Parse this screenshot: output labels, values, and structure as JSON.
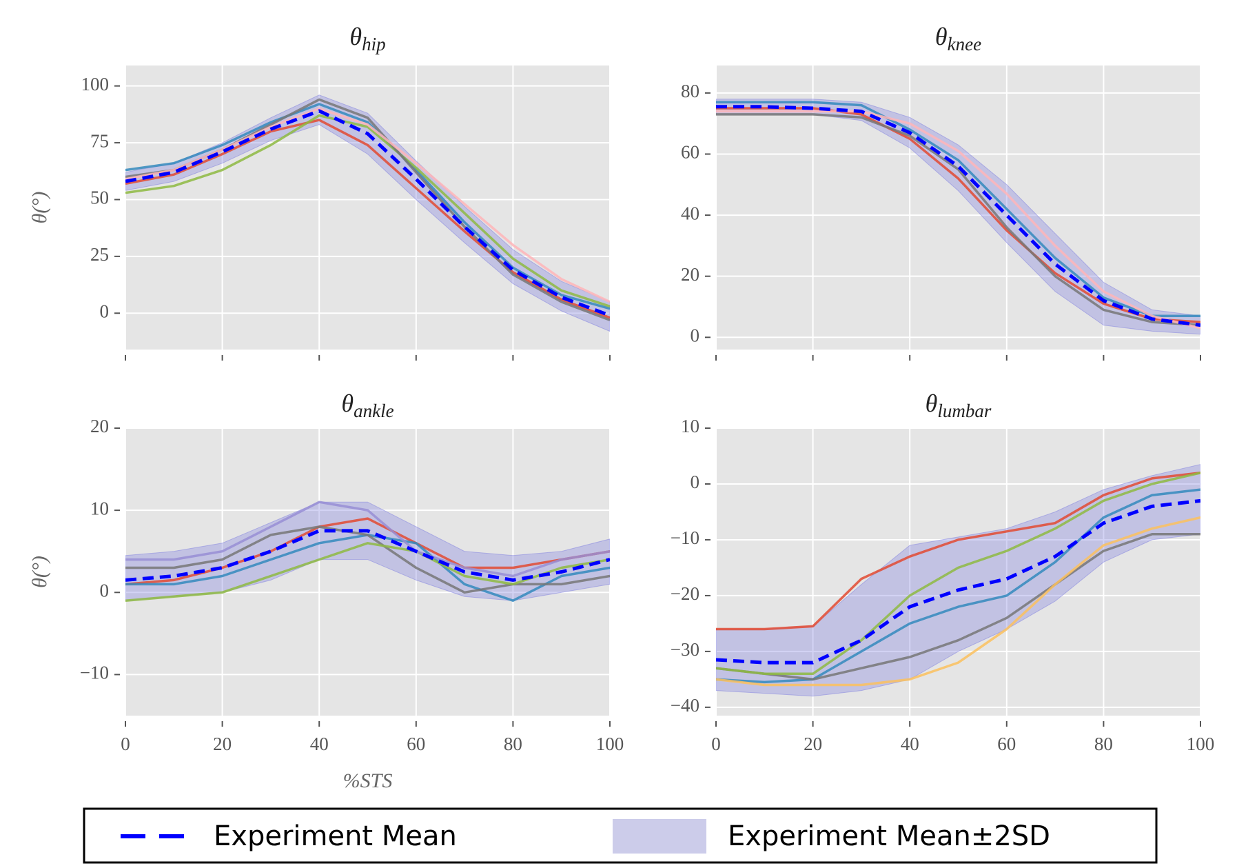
{
  "legend": {
    "items": [
      {
        "name": "Experiment Mean",
        "color": "#0000ff",
        "style": "dashed"
      },
      {
        "name": "Experiment Mean±2SD",
        "color": "#ccccea",
        "style": "patch"
      }
    ]
  },
  "chart_data": [
    {
      "type": "line",
      "title": {
        "symbol": "θ",
        "subscript": "hip"
      },
      "ylabel": "θ(°)",
      "x": [
        0,
        10,
        20,
        30,
        40,
        50,
        60,
        70,
        80,
        90,
        100
      ],
      "xlim": [
        0,
        100
      ],
      "ylim": [
        -16,
        109
      ],
      "xticks": [
        0,
        20,
        40,
        60,
        80,
        100
      ],
      "xtick_labels": false,
      "yticks": [
        0,
        25,
        50,
        75,
        100
      ],
      "grid": true,
      "trials": [
        {
          "color": "#e24a33",
          "values": [
            57,
            61,
            70,
            80,
            85,
            74,
            55,
            36,
            18,
            6,
            -2
          ]
        },
        {
          "color": "#348abd",
          "values": [
            63,
            66,
            74,
            84,
            92,
            84,
            63,
            40,
            20,
            8,
            2
          ]
        },
        {
          "color": "#8eba42",
          "values": [
            53,
            56,
            63,
            74,
            87,
            82,
            64,
            44,
            24,
            10,
            3
          ]
        },
        {
          "color": "#777777",
          "values": [
            60,
            63,
            72,
            83,
            94,
            86,
            62,
            38,
            17,
            5,
            -3
          ]
        },
        {
          "color": "#ffb5b8",
          "values": [
            59,
            63,
            72,
            82,
            90,
            83,
            66,
            48,
            30,
            15,
            5
          ]
        }
      ],
      "band": {
        "color": "#8080e0",
        "upper": [
          62,
          66,
          75,
          86,
          96,
          88,
          67,
          47,
          28,
          14,
          5
        ],
        "lower": [
          54,
          58,
          66,
          76,
          83,
          70,
          50,
          31,
          13,
          1,
          -8
        ]
      },
      "mean": {
        "color": "#0000ff",
        "values": [
          58,
          62,
          71,
          81,
          89,
          79,
          59,
          38,
          19,
          7,
          -1
        ]
      }
    },
    {
      "type": "line",
      "title": {
        "symbol": "θ",
        "subscript": "knee"
      },
      "x": [
        0,
        10,
        20,
        30,
        40,
        50,
        60,
        70,
        80,
        90,
        100
      ],
      "xlim": [
        0,
        100
      ],
      "ylim": [
        -4,
        89
      ],
      "xticks": [
        0,
        20,
        40,
        60,
        80,
        100
      ],
      "xtick_labels": false,
      "yticks": [
        0,
        20,
        40,
        60,
        80
      ],
      "grid": true,
      "trials": [
        {
          "color": "#e24a33",
          "values": [
            75,
            75,
            75,
            73,
            65,
            52,
            35,
            21,
            11,
            6,
            5
          ]
        },
        {
          "color": "#348abd",
          "values": [
            77,
            77,
            77,
            76,
            68,
            58,
            42,
            26,
            13,
            7,
            7
          ]
        },
        {
          "color": "#777777",
          "values": [
            73,
            73,
            73,
            72,
            66,
            55,
            36,
            20,
            9,
            5,
            4
          ]
        },
        {
          "color": "#ffb5b8",
          "values": [
            74,
            74,
            74,
            74,
            70,
            61,
            47,
            30,
            15,
            7,
            3
          ]
        }
      ],
      "band": {
        "color": "#8080e0",
        "upper": [
          78,
          78,
          78,
          77,
          72,
          63,
          50,
          34,
          18,
          9,
          7
        ],
        "lower": [
          73,
          73,
          73,
          71,
          62,
          48,
          31,
          15,
          4,
          2,
          1
        ]
      },
      "mean": {
        "color": "#0000ff",
        "values": [
          75.5,
          75.5,
          75,
          74,
          67,
          56,
          40,
          24,
          12,
          6,
          4
        ]
      }
    },
    {
      "type": "line",
      "title": {
        "symbol": "θ",
        "subscript": "ankle"
      },
      "ylabel": "θ(°)",
      "xlabel": "%STS",
      "x": [
        0,
        10,
        20,
        30,
        40,
        50,
        60,
        70,
        80,
        90,
        100
      ],
      "xlim": [
        0,
        100
      ],
      "ylim": [
        -15,
        20
      ],
      "xticks": [
        0,
        20,
        40,
        60,
        80,
        100
      ],
      "xtick_labels": true,
      "yticks": [
        {
          "value": -10,
          "label": "−10"
        },
        0,
        10,
        20
      ],
      "grid": true,
      "trials": [
        {
          "color": "#e24a33",
          "values": [
            1,
            1.5,
            3,
            5,
            8,
            9,
            6,
            3,
            3,
            4,
            5
          ]
        },
        {
          "color": "#348abd",
          "values": [
            1,
            1,
            2,
            4,
            6,
            7,
            6,
            1,
            -1,
            2,
            3
          ]
        },
        {
          "color": "#777777",
          "values": [
            3,
            3,
            4,
            7,
            8,
            7,
            3,
            0,
            1,
            1,
            2
          ]
        },
        {
          "color": "#8eba42",
          "values": [
            -1,
            -0.5,
            0,
            2,
            4,
            6,
            5,
            2,
            1,
            3,
            4
          ]
        },
        {
          "color": "#988ed5",
          "values": [
            4,
            4,
            5,
            8,
            11,
            10,
            5,
            3,
            2,
            4,
            5
          ]
        }
      ],
      "band": {
        "color": "#8080e0",
        "upper": [
          4.5,
          5,
          6,
          8.5,
          11,
          11,
          8,
          5,
          4.5,
          5,
          6.5
        ],
        "lower": [
          -1,
          -0.5,
          0,
          1.5,
          4,
          4,
          1.5,
          -0.5,
          -1,
          0,
          1
        ]
      },
      "mean": {
        "color": "#0000ff",
        "values": [
          1.5,
          2,
          3,
          5,
          7.5,
          7.5,
          5,
          2.5,
          1.5,
          2.5,
          4
        ]
      }
    },
    {
      "type": "line",
      "title": {
        "symbol": "θ",
        "subscript": "lumbar"
      },
      "x": [
        0,
        10,
        20,
        30,
        40,
        50,
        60,
        70,
        80,
        90,
        100
      ],
      "xlim": [
        0,
        100
      ],
      "ylim": [
        -41.5,
        10
      ],
      "xticks": [
        0,
        20,
        40,
        60,
        80,
        100
      ],
      "xtick_labels": true,
      "yticks": [
        {
          "value": -40,
          "label": "−40"
        },
        {
          "value": -30,
          "label": "−30"
        },
        {
          "value": -20,
          "label": "−20"
        },
        {
          "value": -10,
          "label": "−10"
        },
        0,
        10
      ],
      "grid": true,
      "trials": [
        {
          "color": "#e24a33",
          "values": [
            -26,
            -26,
            -25.5,
            -17,
            -13,
            -10,
            -8.5,
            -7,
            -2,
            1,
            2
          ]
        },
        {
          "color": "#348abd",
          "values": [
            -35,
            -35.5,
            -35,
            -30,
            -25,
            -22,
            -20,
            -14,
            -6,
            -2,
            -1
          ]
        },
        {
          "color": "#777777",
          "values": [
            -33,
            -34,
            -35,
            -33,
            -31,
            -28,
            -24,
            -18,
            -12,
            -9,
            -9
          ]
        },
        {
          "color": "#fbc15e",
          "values": [
            -35,
            -36,
            -36,
            -36,
            -35,
            -32,
            -26,
            -18,
            -11,
            -8,
            -6
          ]
        },
        {
          "color": "#8eba42",
          "values": [
            -33,
            -34,
            -34,
            -28,
            -20,
            -15,
            -12,
            -8,
            -3,
            0,
            2
          ]
        }
      ],
      "band": {
        "color": "#8080e0",
        "upper": [
          -26,
          -26,
          -25.5,
          -18,
          -11,
          -9.5,
          -8,
          -5,
          -1,
          1.5,
          3.5
        ],
        "lower": [
          -37,
          -37.5,
          -38,
          -37,
          -35,
          -30,
          -26,
          -21,
          -14,
          -10,
          -9
        ]
      },
      "mean": {
        "color": "#0000ff",
        "values": [
          -31.5,
          -32,
          -32,
          -28,
          -22,
          -19,
          -17,
          -13,
          -7,
          -4,
          -3
        ]
      }
    }
  ]
}
